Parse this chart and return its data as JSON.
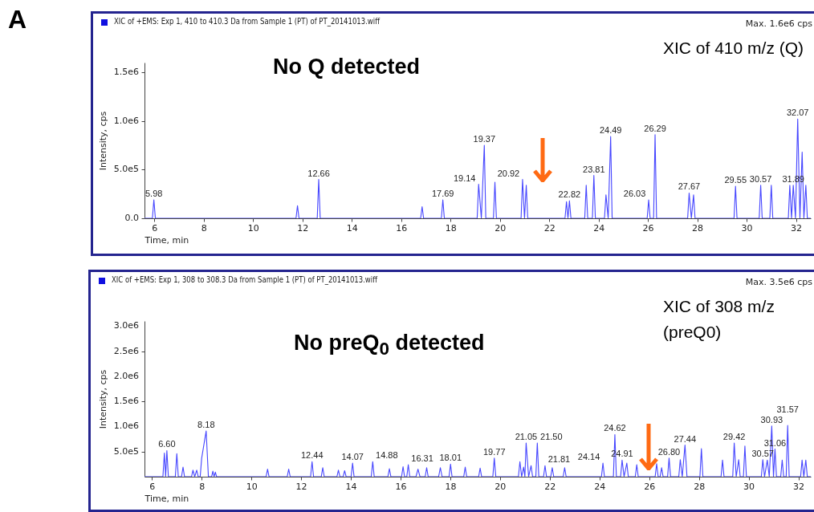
{
  "chart_data": [
    {
      "type": "line",
      "title": "XIC of +EMS: Exp 1, 410 to 410.3 Da from Sample 1 (PT) of PT_20141013.wiff",
      "xlabel": "Time, min",
      "ylabel": "Intensity, cps",
      "xlim": [
        5.6,
        32.6
      ],
      "xticks": [
        6,
        8,
        10,
        12,
        14,
        16,
        18,
        20,
        22,
        24,
        26,
        28,
        30,
        32
      ],
      "ylim": [
        0,
        1600000
      ],
      "yticks": [
        {
          "value": 0,
          "label": "0.0"
        },
        {
          "value": 500000,
          "label": "5.0e5"
        },
        {
          "value": 1000000,
          "label": "1.0e6"
        },
        {
          "value": 1500000,
          "label": "1.5e6"
        }
      ],
      "series": [
        {
          "color": "#4646ff",
          "x": [
            5.6,
            5.92,
            5.98,
            6.04,
            11.74,
            11.8,
            11.86,
            12.6,
            12.66,
            12.72,
            16.79,
            16.85,
            16.91,
            17.63,
            17.69,
            17.75,
            19.08,
            19.14,
            19.25,
            19.37,
            19.43,
            19.74,
            19.8,
            19.86,
            20.86,
            20.92,
            21.0,
            21.07,
            21.13,
            22.64,
            22.7,
            22.76,
            22.82,
            22.88,
            23.44,
            23.5,
            23.56,
            23.75,
            23.81,
            23.87,
            24.24,
            24.3,
            24.39,
            24.49,
            24.55,
            25.97,
            26.03,
            26.09,
            26.23,
            26.29,
            26.35,
            27.61,
            27.67,
            27.76,
            27.85,
            27.91,
            29.49,
            29.55,
            29.61,
            30.51,
            30.57,
            30.63,
            30.94,
            31.0,
            31.06,
            31.69,
            31.75,
            31.82,
            31.89,
            31.98,
            32.07,
            32.16,
            32.25,
            32.32,
            32.4,
            32.46,
            32.6
          ],
          "values": [
            0,
            0,
            190000,
            0,
            0,
            130000,
            0,
            0,
            400000,
            0,
            0,
            120000,
            0,
            0,
            190000,
            0,
            0,
            350000,
            0,
            750000,
            0,
            0,
            370000,
            0,
            0,
            400000,
            0,
            340000,
            0,
            0,
            170000,
            0,
            180000,
            0,
            0,
            340000,
            0,
            0,
            440000,
            0,
            0,
            240000,
            0,
            840000,
            0,
            0,
            190000,
            0,
            0,
            860000,
            0,
            0,
            260000,
            0,
            240000,
            0,
            0,
            330000,
            0,
            0,
            340000,
            0,
            0,
            340000,
            0,
            0,
            340000,
            0,
            340000,
            0,
            1020000,
            0,
            680000,
            0,
            340000,
            0,
            0
          ]
        }
      ],
      "annotations": [
        "A",
        "Max. 1.6e6 cps",
        "XIC of 410 m/z (Q)",
        "No Q detected",
        {
          "text": "5.98",
          "x": 5.98,
          "y": 190000
        },
        {
          "text": "12.66",
          "x": 12.66,
          "y": 400000
        },
        {
          "text": "17.69",
          "x": 17.69,
          "y": 190000
        },
        {
          "text": "19.14",
          "x": 19.14,
          "y": 350000
        },
        {
          "text": "19.37",
          "x": 19.37,
          "y": 750000
        },
        {
          "text": "20.92",
          "x": 20.92,
          "y": 400000
        },
        {
          "text": "22.82",
          "x": 22.82,
          "y": 180000
        },
        {
          "text": "23.81",
          "x": 23.81,
          "y": 440000
        },
        {
          "text": "24.49",
          "x": 24.49,
          "y": 840000
        },
        {
          "text": "26.03",
          "x": 26.03,
          "y": 190000
        },
        {
          "text": "26.29",
          "x": 26.29,
          "y": 860000
        },
        {
          "text": "27.67",
          "x": 27.67,
          "y": 260000
        },
        {
          "text": "29.55",
          "x": 29.55,
          "y": 330000
        },
        {
          "text": "30.57",
          "x": 30.57,
          "y": 340000
        },
        {
          "text": "31.89",
          "x": 31.89,
          "y": 340000
        },
        {
          "text": "32.07",
          "x": 32.07,
          "y": 1020000
        }
      ]
    },
    {
      "type": "line",
      "title": "XIC of +EMS: Exp 1, 308 to 308.3 Da from Sample 1 (PT) of PT_20141013.wiff",
      "xlabel": "Time, min",
      "ylabel": "Intensity, cps",
      "xlim": [
        5.7,
        32.5
      ],
      "xticks": [
        6,
        8,
        10,
        12,
        14,
        16,
        18,
        20,
        22,
        24,
        26,
        28,
        30,
        32
      ],
      "ylim": [
        0,
        3100000
      ],
      "yticks": [
        {
          "value": 500000,
          "label": "5.0e5"
        },
        {
          "value": 1000000,
          "label": "1.0e6"
        },
        {
          "value": 1500000,
          "label": "1.5e6"
        },
        {
          "value": 2000000,
          "label": "2.0e6"
        },
        {
          "value": 2500000,
          "label": "2.5e6"
        },
        {
          "value": 3000000,
          "label": "3.0e6"
        }
      ],
      "series": [
        {
          "color": "#4646ff",
          "x": [
            5.7,
            6.44,
            6.5,
            6.55,
            6.6,
            6.66,
            6.94,
            7.0,
            7.06,
            7.19,
            7.25,
            7.31,
            7.59,
            7.65,
            7.72,
            7.8,
            7.86,
            7.94,
            8.0,
            8.18,
            8.27,
            8.4,
            8.45,
            8.5,
            8.55,
            8.6,
            10.59,
            10.65,
            10.71,
            11.44,
            11.5,
            11.56,
            12.38,
            12.44,
            12.5,
            12.81,
            12.87,
            12.93,
            13.44,
            13.5,
            13.56,
            13.69,
            13.75,
            13.81,
            14.01,
            14.07,
            14.13,
            14.82,
            14.88,
            14.94,
            15.49,
            15.55,
            15.61,
            16.04,
            16.1,
            16.16,
            16.25,
            16.31,
            16.37,
            16.62,
            16.7,
            16.78,
            16.99,
            17.05,
            17.11,
            17.53,
            17.6,
            17.67,
            17.95,
            18.01,
            18.07,
            18.54,
            18.6,
            18.66,
            19.14,
            19.2,
            19.26,
            19.71,
            19.77,
            19.83,
            20.74,
            20.8,
            20.87,
            20.95,
            21.0,
            21.05,
            21.15,
            21.25,
            21.31,
            21.44,
            21.5,
            21.56,
            21.75,
            21.81,
            21.87,
            22.04,
            22.1,
            22.16,
            22.54,
            22.6,
            22.66,
            24.08,
            24.14,
            24.2,
            24.56,
            24.62,
            24.68,
            24.85,
            24.91,
            24.99,
            25.1,
            25.16,
            25.44,
            25.5,
            25.56,
            26.24,
            26.3,
            26.36,
            26.44,
            26.5,
            26.56,
            26.74,
            26.8,
            26.86,
            27.19,
            27.25,
            27.33,
            27.44,
            27.52,
            28.04,
            28.1,
            28.16,
            28.89,
            28.95,
            29.01,
            29.36,
            29.42,
            29.5,
            29.6,
            29.66,
            29.79,
            29.85,
            29.91,
            30.51,
            30.57,
            30.64,
            30.75,
            30.83,
            30.93,
            31.0,
            31.06,
            31.12,
            31.29,
            31.35,
            31.41,
            31.51,
            31.57,
            31.63,
            32.09,
            32.15,
            32.22,
            32.3,
            32.36,
            32.5
          ],
          "values": [
            0,
            0,
            470000,
            0,
            520000,
            0,
            0,
            460000,
            0,
            0,
            190000,
            0,
            0,
            130000,
            0,
            130000,
            0,
            0,
            370000,
            910000,
            0,
            0,
            110000,
            0,
            90000,
            0,
            0,
            150000,
            0,
            0,
            150000,
            0,
            0,
            300000,
            0,
            0,
            180000,
            0,
            0,
            130000,
            0,
            0,
            120000,
            0,
            0,
            270000,
            0,
            0,
            300000,
            0,
            0,
            160000,
            0,
            0,
            200000,
            0,
            0,
            240000,
            0,
            0,
            150000,
            0,
            0,
            180000,
            0,
            0,
            180000,
            0,
            0,
            250000,
            0,
            0,
            190000,
            0,
            0,
            170000,
            0,
            0,
            370000,
            0,
            0,
            300000,
            0,
            190000,
            0,
            670000,
            0,
            220000,
            0,
            0,
            670000,
            0,
            0,
            220000,
            0,
            0,
            180000,
            0,
            0,
            180000,
            0,
            0,
            270000,
            0,
            0,
            840000,
            0,
            0,
            330000,
            0,
            270000,
            0,
            0,
            240000,
            0,
            0,
            260000,
            0,
            0,
            180000,
            0,
            0,
            370000,
            0,
            0,
            340000,
            0,
            630000,
            0,
            0,
            560000,
            0,
            0,
            330000,
            0,
            0,
            670000,
            0,
            340000,
            0,
            0,
            610000,
            0,
            0,
            340000,
            0,
            330000,
            0,
            1010000,
            0,
            550000,
            0,
            0,
            330000,
            0,
            0,
            1020000,
            0,
            0,
            330000,
            0,
            330000,
            0,
            0
          ]
        }
      ],
      "annotations": [
        "Max. 3.5e6 cps",
        "XIC of 308 m/z",
        "(preQ0)",
        "No preQ$_{0}$ detected",
        {
          "text": "6.60",
          "x": 6.6,
          "y": 520000
        },
        {
          "text": "8.18",
          "x": 8.18,
          "y": 910000
        },
        {
          "text": "12.44",
          "x": 12.44,
          "y": 300000
        },
        {
          "text": "14.07",
          "x": 14.07,
          "y": 270000
        },
        {
          "text": "14.88",
          "x": 14.88,
          "y": 300000
        },
        {
          "text": "16.31",
          "x": 16.31,
          "y": 240000
        },
        {
          "text": "18.01",
          "x": 18.01,
          "y": 250000
        },
        {
          "text": "19.77",
          "x": 19.77,
          "y": 370000
        },
        {
          "text": "21.05",
          "x": 21.05,
          "y": 670000
        },
        {
          "text": "21.50",
          "x": 21.5,
          "y": 670000
        },
        {
          "text": "21.81",
          "x": 21.81,
          "y": 220000
        },
        {
          "text": "24.14",
          "x": 24.14,
          "y": 270000
        },
        {
          "text": "24.62",
          "x": 24.62,
          "y": 840000
        },
        {
          "text": "24.91",
          "x": 24.91,
          "y": 330000
        },
        {
          "text": "26.80",
          "x": 26.8,
          "y": 370000
        },
        {
          "text": "27.44",
          "x": 27.44,
          "y": 630000
        },
        {
          "text": "29.42",
          "x": 29.42,
          "y": 670000
        },
        {
          "text": "30.57",
          "x": 30.57,
          "y": 340000
        },
        {
          "text": "30.93",
          "x": 30.93,
          "y": 1010000
        },
        {
          "text": "31.06",
          "x": 31.06,
          "y": 550000
        },
        {
          "text": "31.57",
          "x": 31.57,
          "y": 1020000
        }
      ]
    }
  ]
}
